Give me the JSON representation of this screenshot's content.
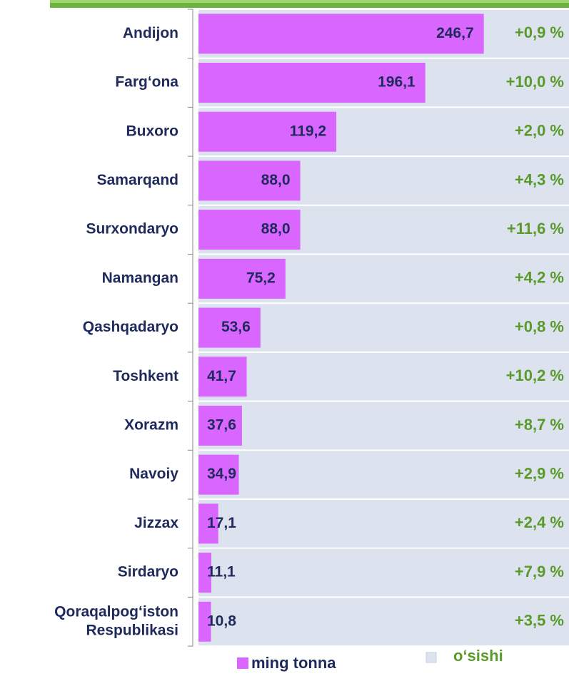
{
  "chart_data": {
    "type": "bar",
    "orientation": "horizontal",
    "categories": [
      "Andijon",
      "Farg‘ona",
      "Buxoro",
      "Samarqand",
      "Surxondaryo",
      "Namangan",
      "Qashqadaryo",
      "Toshkent",
      "Xorazm",
      "Navoiy",
      "Jizzax",
      "Sirdaryo",
      [
        "Qoraqalpog‘iston",
        "Respublikasi"
      ]
    ],
    "series": [
      {
        "name": "ming tonna",
        "color": "#d966ff",
        "values": [
          246.7,
          196.1,
          119.2,
          88.0,
          88.0,
          75.2,
          53.6,
          41.7,
          37.6,
          34.9,
          17.1,
          11.1,
          10.8
        ],
        "value_labels": [
          "246,7",
          "196,1",
          "119,2",
          "88,0",
          "88,0",
          "75,2",
          "53,6",
          "41,7",
          "37,6",
          "34,9",
          "17,1",
          "11,1",
          "10,8"
        ]
      },
      {
        "name": "o‘sishi",
        "color": "#dce3ef",
        "values": [
          0.9,
          10.0,
          2.0,
          4.3,
          11.6,
          4.2,
          0.8,
          10.2,
          8.7,
          2.9,
          2.4,
          7.9,
          3.5
        ],
        "value_labels": [
          "+0,9 %",
          "+10,0 %",
          "+2,0 %",
          "+4,3 %",
          "+11,6 %",
          "+4,2 %",
          "+0,8 %",
          "+10,2 %",
          "+8,7 %",
          "+2,9 %",
          "+2,4 %",
          "+7,9 %",
          "+3,5 %"
        ]
      }
    ]
  }
}
